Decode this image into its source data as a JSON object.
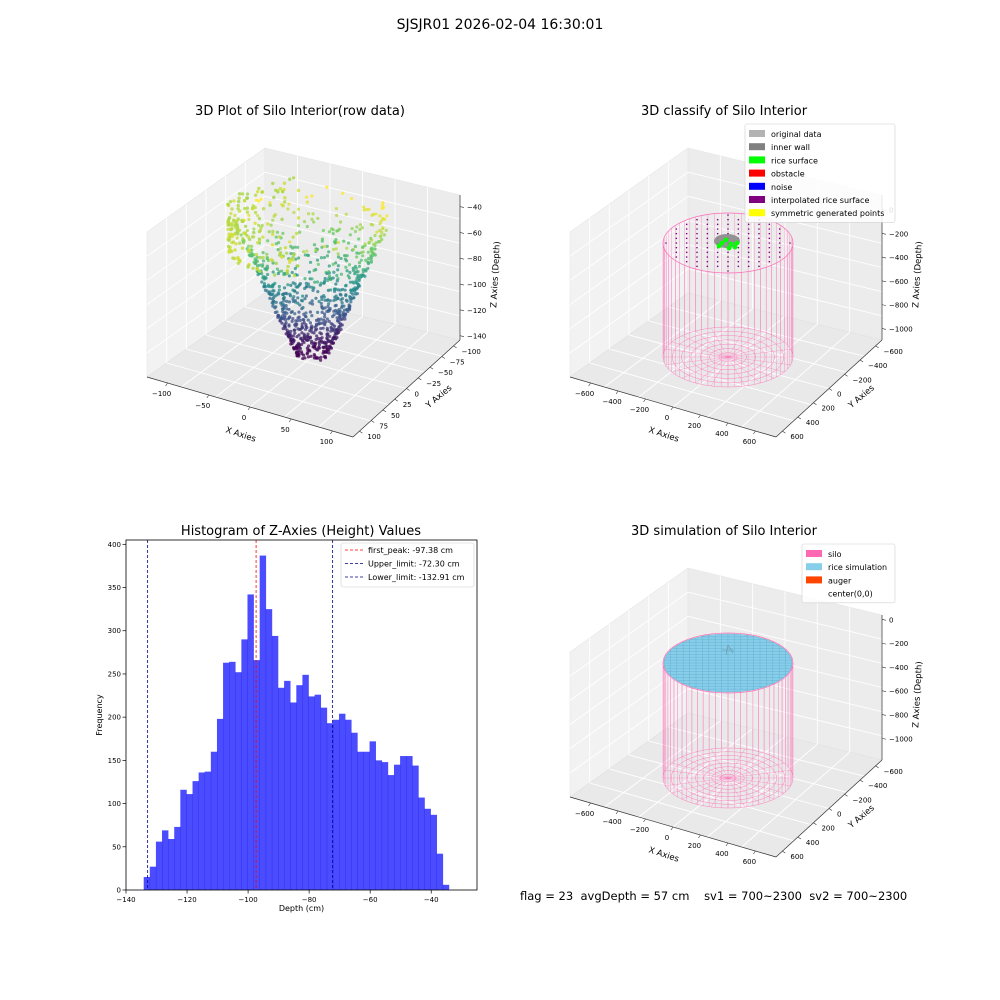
{
  "figure": {
    "suptitle": "SJSJR01 2026-02-04 16:30:01"
  },
  "chart_data": [
    {
      "type": "scatter3d",
      "title": "3D Plot of Silo Interior(row data)",
      "xlabel": "X Axies",
      "ylabel": "Y Axies",
      "zlabel": "Z Axies (Depth)",
      "xticks": [
        "−100",
        "−50",
        "0",
        "50",
        "100"
      ],
      "yticks": [
        "100",
        "75",
        "50",
        "25",
        "0",
        "−25",
        "−50",
        "−75",
        "−100"
      ],
      "zticks": [
        "−40",
        "−60",
        "−80",
        "−100",
        "−120",
        "−140"
      ],
      "xlim": [
        -130,
        130
      ],
      "ylim": [
        -110,
        110
      ],
      "zlim": [
        -145,
        -30
      ],
      "colormap": "viridis"
    },
    {
      "type": "scatter3d",
      "title": "3D classify of Silo Interior",
      "xlabel": "X Axies",
      "ylabel": "Y Axies",
      "zlabel": "Z Axies (Depth)",
      "xticks": [
        "−600",
        "−400",
        "−200",
        "0",
        "200",
        "400",
        "600"
      ],
      "yticks": [
        "600",
        "400",
        "200",
        "0",
        "−200",
        "−400",
        "−600"
      ],
      "zticks": [
        "0",
        "−200",
        "−400",
        "−600",
        "−800",
        "−1000"
      ],
      "legend": [
        {
          "label": "original data",
          "color": "#b3b3b3"
        },
        {
          "label": "inner wall",
          "color": "#808080"
        },
        {
          "label": "rice surface",
          "color": "#00ff00"
        },
        {
          "label": "obstacle",
          "color": "#ff0000"
        },
        {
          "label": "noise",
          "color": "#0000ff"
        },
        {
          "label": "interpolated rice surface",
          "color": "#800080"
        },
        {
          "label": "symmetric generated points",
          "color": "#ffff00"
        }
      ],
      "silo_color": "#ff69b4"
    },
    {
      "type": "bar",
      "title": "Histogram of Z-Axies (Height) Values",
      "xlabel": "Depth (cm)",
      "ylabel": "Frequency",
      "bin_start": -134.2,
      "bin_width": 2.0,
      "values": [
        15,
        27,
        56,
        69,
        59,
        73,
        116,
        111,
        126,
        136,
        137,
        160,
        198,
        263,
        264,
        252,
        290,
        342,
        266,
        387,
        325,
        294,
        234,
        242,
        217,
        237,
        249,
        224,
        226,
        211,
        193,
        197,
        204,
        197,
        182,
        160,
        160,
        172,
        150,
        148,
        133,
        145,
        155,
        155,
        144,
        107,
        94,
        87,
        42,
        6
      ],
      "xlim": [
        -140,
        -25
      ],
      "ylim": [
        0,
        405
      ],
      "xticks": [
        -140,
        -120,
        -100,
        -80,
        -60,
        -40
      ],
      "xtick_labels": [
        "−140",
        "−120",
        "−100",
        "−80",
        "−60",
        "−40"
      ],
      "yticks": [
        0,
        50,
        100,
        150,
        200,
        250,
        300,
        350,
        400
      ],
      "bar_color": "#0000ff",
      "vlines": [
        {
          "label": "first_peak: -97.38 cm",
          "x": -97.38,
          "color": "#ff0000"
        },
        {
          "label": "Upper_limit: -72.30 cm",
          "x": -72.3,
          "color": "#00008b"
        },
        {
          "label": "Lower_limit: -132.91 cm",
          "x": -132.91,
          "color": "#00008b"
        }
      ]
    },
    {
      "type": "surface3d",
      "title": "3D simulation of Silo Interior",
      "xlabel": "X Axies",
      "ylabel": "Y Axies",
      "zlabel": "Z Axies (Depth)",
      "xticks": [
        "−600",
        "−400",
        "−200",
        "0",
        "200",
        "400",
        "600"
      ],
      "yticks": [
        "600",
        "400",
        "200",
        "0",
        "−200",
        "−400",
        "−600"
      ],
      "zticks": [
        "0",
        "−200",
        "−400",
        "−600",
        "−800",
        "−1000"
      ],
      "legend": [
        {
          "label": "silo",
          "color": "#ff69b4"
        },
        {
          "label": "rice simulation",
          "color": "#87ceeb"
        },
        {
          "label": "auger",
          "color": "#ff4500"
        },
        {
          "label": "center(0,0)",
          "color": ""
        }
      ]
    }
  ],
  "status": {
    "flag": "flag = 23",
    "avg": "avgDepth = 57 cm",
    "sv1": "sv1 = 700~2300",
    "sv2": "sv2 = 700~2300"
  }
}
